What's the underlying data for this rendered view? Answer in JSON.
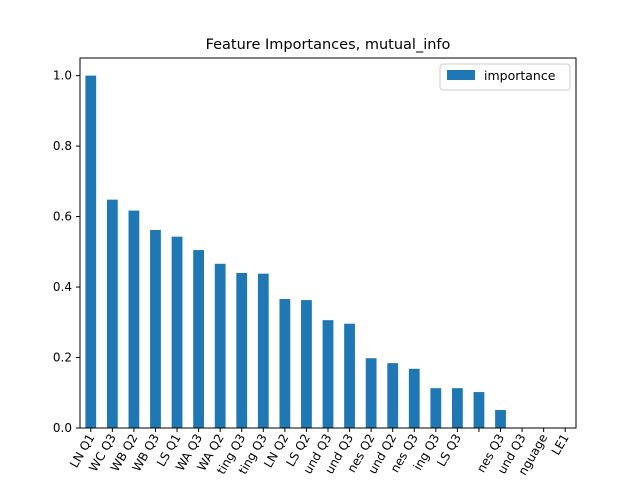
{
  "chart_data": {
    "type": "bar",
    "title": "Feature Importances, mutual_info",
    "xlabel": "",
    "ylabel": "",
    "ylim": [
      0,
      1.05
    ],
    "yticks": [
      0.0,
      0.2,
      0.4,
      0.6,
      0.8,
      1.0
    ],
    "ytick_labels": [
      "0.0",
      "0.2",
      "0.4",
      "0.6",
      "0.8",
      "1.0"
    ],
    "legend": {
      "position": "top-right",
      "entries": [
        "importance"
      ]
    },
    "grid": false,
    "categories": [
      "LN Q1",
      "WC Q3",
      "WB Q2",
      "WB Q3",
      "LS Q1",
      "WA Q3",
      "WA Q2",
      "ting Q3",
      "ting Q3",
      "LN Q2",
      "LS Q2",
      "und Q3",
      "und Q3",
      "nes Q2",
      "und Q2",
      "nes Q3",
      "ing Q3",
      "LS Q3",
      "",
      "nes Q3",
      "und Q3",
      "nguage",
      "LE1"
    ],
    "series": [
      {
        "name": "importance",
        "color": "#1f77b4",
        "values": [
          1.0,
          0.648,
          0.617,
          0.562,
          0.543,
          0.505,
          0.466,
          0.44,
          0.438,
          0.366,
          0.363,
          0.306,
          0.296,
          0.198,
          0.184,
          0.168,
          0.113,
          0.113,
          0.102,
          0.051,
          0.0,
          0.0,
          0.0
        ]
      }
    ]
  }
}
